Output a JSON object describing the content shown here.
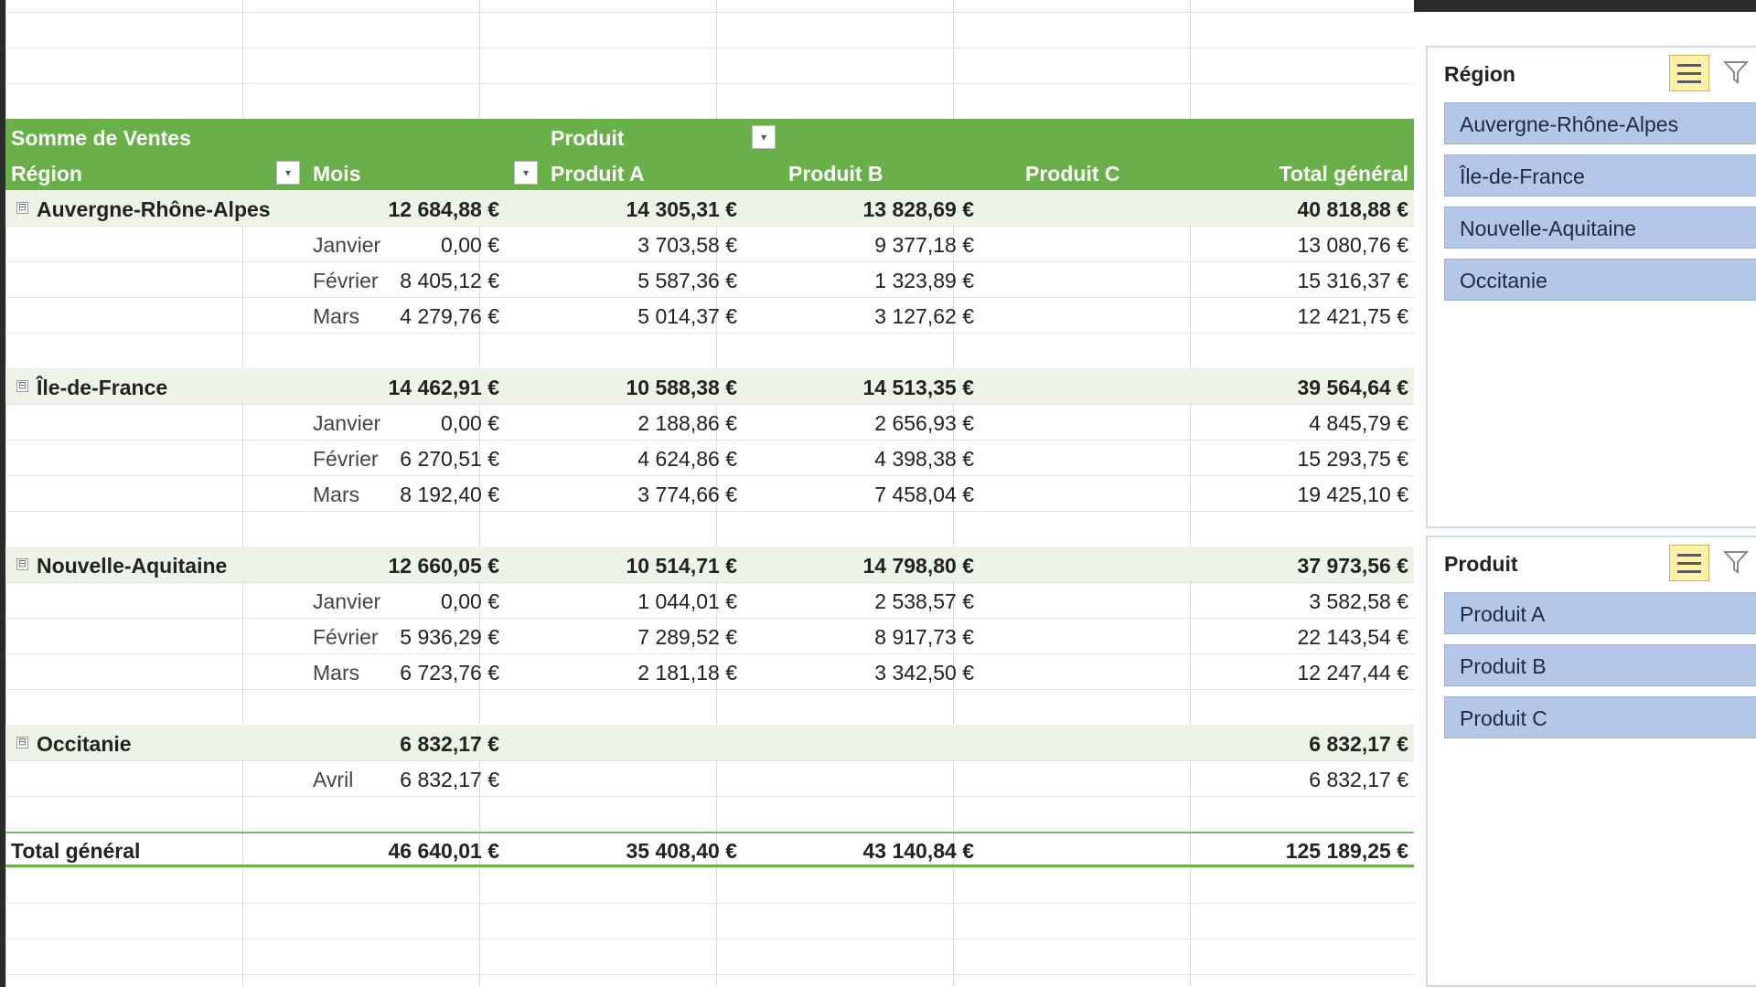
{
  "pivot": {
    "header": {
      "values_label": "Somme de Ventes",
      "column_field": "Produit",
      "row_field_region": "Région",
      "row_field_month": "Mois",
      "columns": [
        "Produit A",
        "Produit B",
        "Produit C",
        "Total général"
      ]
    },
    "regions": [
      {
        "name": "Auvergne-Rhône-Alpes",
        "a": "12 684,88 €",
        "b": "14 305,31 €",
        "c": "13 828,69 €",
        "t": "40 818,88 €",
        "months": [
          {
            "m": "Janvier",
            "a": "0,00 €",
            "b": "3 703,58 €",
            "c": "9 377,18 €",
            "t": "13 080,76 €"
          },
          {
            "m": "Février",
            "a": "8 405,12 €",
            "b": "5 587,36 €",
            "c": "1 323,89 €",
            "t": "15 316,37 €"
          },
          {
            "m": "Mars",
            "a": "4 279,76 €",
            "b": "5 014,37 €",
            "c": "3 127,62 €",
            "t": "12 421,75 €"
          }
        ]
      },
      {
        "name": "Île-de-France",
        "a": "14 462,91 €",
        "b": "10 588,38 €",
        "c": "14 513,35 €",
        "t": "39 564,64 €",
        "months": [
          {
            "m": "Janvier",
            "a": "0,00 €",
            "b": "2 188,86 €",
            "c": "2 656,93 €",
            "t": "4 845,79 €"
          },
          {
            "m": "Février",
            "a": "6 270,51 €",
            "b": "4 624,86 €",
            "c": "4 398,38 €",
            "t": "15 293,75 €"
          },
          {
            "m": "Mars",
            "a": "8 192,40 €",
            "b": "3 774,66 €",
            "c": "7 458,04 €",
            "t": "19 425,10 €"
          }
        ]
      },
      {
        "name": "Nouvelle-Aquitaine",
        "a": "12 660,05 €",
        "b": "10 514,71 €",
        "c": "14 798,80 €",
        "t": "37 973,56 €",
        "months": [
          {
            "m": "Janvier",
            "a": "0,00 €",
            "b": "1 044,01 €",
            "c": "2 538,57 €",
            "t": "3 582,58 €"
          },
          {
            "m": "Février",
            "a": "5 936,29 €",
            "b": "7 289,52 €",
            "c": "8 917,73 €",
            "t": "22 143,54 €"
          },
          {
            "m": "Mars",
            "a": "6 723,76 €",
            "b": "2 181,18 €",
            "c": "3 342,50 €",
            "t": "12 247,44 €"
          }
        ]
      },
      {
        "name": "Occitanie",
        "a": "6 832,17 €",
        "b": "",
        "c": "",
        "t": "6 832,17 €",
        "months": [
          {
            "m": "Avril",
            "a": "6 832,17 €",
            "b": "",
            "c": "",
            "t": "6 832,17 €"
          }
        ]
      }
    ],
    "grand_total": {
      "label": "Total général",
      "a": "46 640,01 €",
      "b": "35 408,40 €",
      "c": "43 140,84 €",
      "t": "125 189,25 €"
    }
  },
  "slicers": {
    "region": {
      "title": "Région",
      "items": [
        "Auvergne-Rhône-Alpes",
        "Île-de-France",
        "Nouvelle-Aquitaine",
        "Occitanie"
      ]
    },
    "product": {
      "title": "Produit",
      "items": [
        "Produit A",
        "Produit B",
        "Produit C"
      ]
    }
  },
  "icons": {
    "collapse": "⊟",
    "dropdown": "▾",
    "filter_dropdown": "▾",
    "colors": {
      "header_green": "#6ab04a",
      "region_band": "#eef3e8",
      "slicer_item": "#b5c7e8"
    }
  }
}
